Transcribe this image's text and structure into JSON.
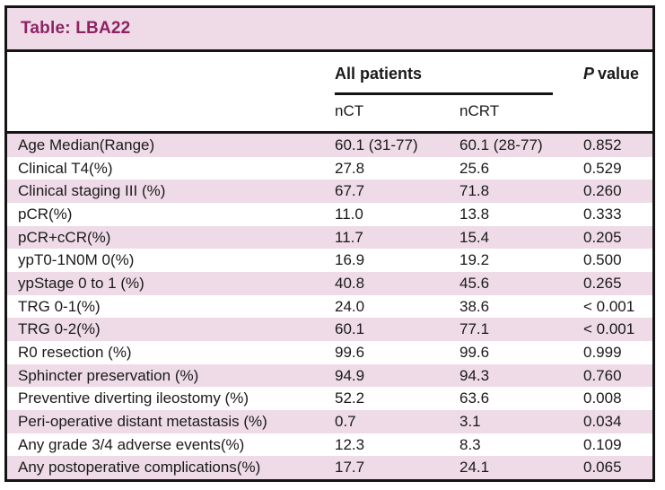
{
  "title": "Table: LBA22",
  "colors": {
    "accent_magenta": "#8e2264",
    "stripe_pink": "#eedbe7",
    "frame_black": "#141414",
    "text": "#1a1a1a",
    "background": "#ffffff"
  },
  "table": {
    "group_header": "All patients",
    "p_header": {
      "italic": "P",
      "rest": "value"
    },
    "sub_headers": [
      "nCT",
      "nCRT"
    ],
    "rows": [
      {
        "label": "Age Median(Range)",
        "nct": "60.1 (31-77)",
        "ncrt": "60.1 (28-77)",
        "p": "0.852"
      },
      {
        "label": "Clinical T4(%)",
        "nct": "27.8",
        "ncrt": "25.6",
        "p": "0.529"
      },
      {
        "label": "Clinical staging III (%)",
        "nct": "67.7",
        "ncrt": "71.8",
        "p": "0.260"
      },
      {
        "label": "pCR(%)",
        "nct": "11.0",
        "ncrt": "13.8",
        "p": "0.333"
      },
      {
        "label": "pCR+cCR(%)",
        "nct": "11.7",
        "ncrt": "15.4",
        "p": "0.205"
      },
      {
        "label": "ypT0-1N0M 0(%)",
        "nct": "16.9",
        "ncrt": "19.2",
        "p": "0.500"
      },
      {
        "label": "ypStage 0 to 1 (%)",
        "nct": "40.8",
        "ncrt": "45.6",
        "p": "0.265"
      },
      {
        "label": "TRG 0-1(%)",
        "nct": "24.0",
        "ncrt": "38.6",
        "p": "< 0.001"
      },
      {
        "label": "TRG 0-2(%)",
        "nct": "60.1",
        "ncrt": "77.1",
        "p": "< 0.001"
      },
      {
        "label": "R0 resection (%)",
        "nct": "99.6",
        "ncrt": "99.6",
        "p": "0.999"
      },
      {
        "label": "Sphincter preservation (%)",
        "nct": "94.9",
        "ncrt": "94.3",
        "p": "0.760"
      },
      {
        "label": "Preventive diverting ileostomy (%)",
        "nct": "52.2",
        "ncrt": "63.6",
        "p": "0.008"
      },
      {
        "label": "Peri-operative distant metastasis (%)",
        "nct": "0.7",
        "ncrt": "3.1",
        "p": "0.034"
      },
      {
        "label": "Any grade 3/4 adverse events(%)",
        "nct": "12.3",
        "ncrt": "8.3",
        "p": "0.109"
      },
      {
        "label": "Any postoperative complications(%)",
        "nct": "17.7",
        "ncrt": "24.1",
        "p": "0.065"
      }
    ]
  }
}
